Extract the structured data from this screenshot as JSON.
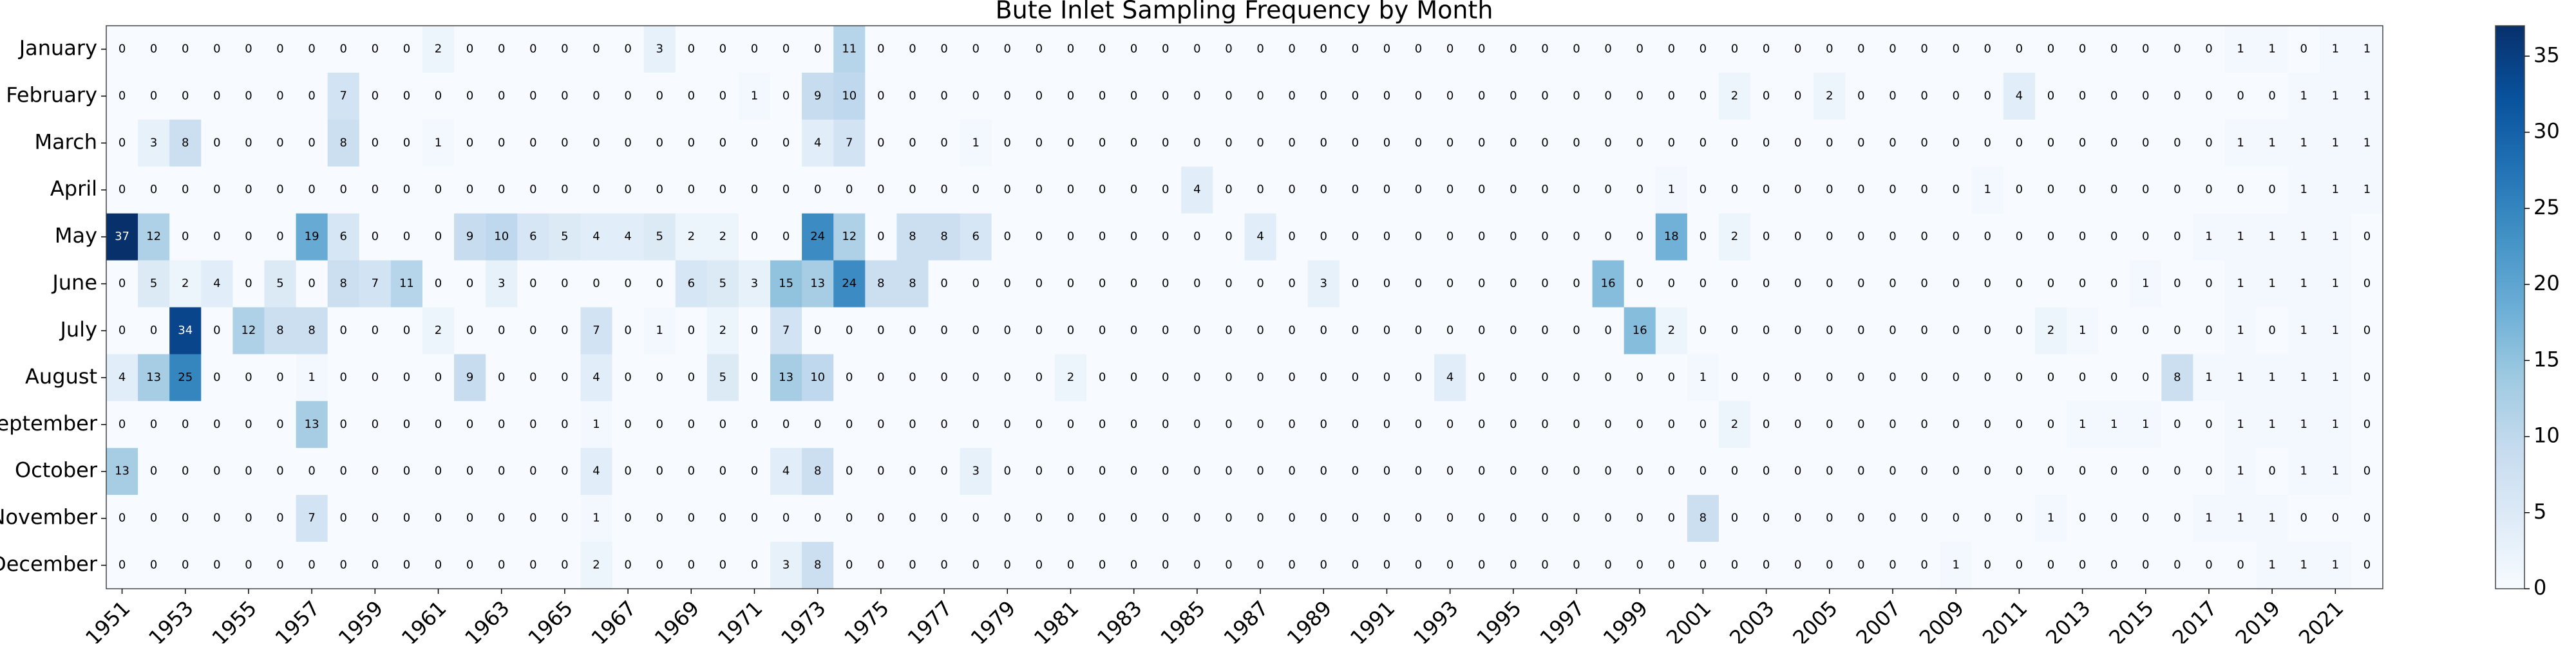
{
  "chart_data": {
    "type": "heatmap",
    "title": "Bute Inlet Sampling Frequency by Month",
    "x": [
      1951,
      null,
      1953,
      null,
      1955,
      null,
      1957,
      null,
      1959,
      null,
      1961,
      null,
      1963,
      null,
      1965,
      null,
      1967,
      null,
      1969,
      null,
      1971,
      null,
      1973,
      null,
      1975,
      null,
      1977,
      null,
      1979,
      null,
      1981,
      null,
      1983,
      null,
      1985,
      null,
      1987,
      null,
      1989,
      null,
      1991,
      null,
      1993,
      null,
      1995,
      null,
      1997,
      null,
      1999,
      null,
      2001,
      null,
      2003,
      null,
      2005,
      null,
      2007,
      null,
      2009,
      null,
      2011,
      null,
      2013,
      null,
      2015,
      null,
      2017,
      null,
      2019,
      null,
      2021,
      null
    ],
    "y": [
      "January",
      "February",
      "March",
      "April",
      "May",
      "June",
      "July",
      "August",
      "September",
      "October",
      "November",
      "December"
    ],
    "values": [
      [
        0,
        0,
        0,
        0,
        0,
        0,
        0,
        0,
        0,
        0,
        2,
        0,
        0,
        0,
        0,
        0,
        0,
        3,
        0,
        0,
        0,
        0,
        0,
        11,
        0,
        0,
        0,
        0,
        0,
        0,
        0,
        0,
        0,
        0,
        0,
        0,
        0,
        0,
        0,
        0,
        0,
        0,
        0,
        0,
        0,
        0,
        0,
        0,
        0,
        0,
        0,
        0,
        0,
        0,
        0,
        0,
        0,
        0,
        0,
        0,
        0,
        0,
        0,
        0,
        0,
        0,
        0,
        1,
        1,
        0,
        1,
        1
      ],
      [
        0,
        0,
        0,
        0,
        0,
        0,
        0,
        7,
        0,
        0,
        0,
        0,
        0,
        0,
        0,
        0,
        0,
        0,
        0,
        0,
        1,
        0,
        9,
        10,
        0,
        0,
        0,
        0,
        0,
        0,
        0,
        0,
        0,
        0,
        0,
        0,
        0,
        0,
        0,
        0,
        0,
        0,
        0,
        0,
        0,
        0,
        0,
        0,
        0,
        0,
        0,
        2,
        0,
        0,
        2,
        0,
        0,
        0,
        0,
        0,
        4,
        0,
        0,
        0,
        0,
        0,
        0,
        0,
        0,
        1,
        1,
        1
      ],
      [
        0,
        3,
        8,
        0,
        0,
        0,
        0,
        8,
        0,
        0,
        1,
        0,
        0,
        0,
        0,
        0,
        0,
        0,
        0,
        0,
        0,
        0,
        4,
        7,
        0,
        0,
        0,
        1,
        0,
        0,
        0,
        0,
        0,
        0,
        0,
        0,
        0,
        0,
        0,
        0,
        0,
        0,
        0,
        0,
        0,
        0,
        0,
        0,
        0,
        0,
        0,
        0,
        0,
        0,
        0,
        0,
        0,
        0,
        0,
        0,
        0,
        0,
        0,
        0,
        0,
        0,
        0,
        1,
        1,
        1,
        1,
        1
      ],
      [
        0,
        0,
        0,
        0,
        0,
        0,
        0,
        0,
        0,
        0,
        0,
        0,
        0,
        0,
        0,
        0,
        0,
        0,
        0,
        0,
        0,
        0,
        0,
        0,
        0,
        0,
        0,
        0,
        0,
        0,
        0,
        0,
        0,
        0,
        4,
        0,
        0,
        0,
        0,
        0,
        0,
        0,
        0,
        0,
        0,
        0,
        0,
        0,
        0,
        1,
        0,
        0,
        0,
        0,
        0,
        0,
        0,
        0,
        0,
        1,
        0,
        0,
        0,
        0,
        0,
        0,
        0,
        0,
        0,
        1,
        1,
        1
      ],
      [
        37,
        12,
        0,
        0,
        0,
        0,
        19,
        6,
        0,
        0,
        0,
        9,
        10,
        6,
        5,
        4,
        4,
        5,
        2,
        2,
        0,
        0,
        24,
        12,
        0,
        8,
        8,
        6,
        0,
        0,
        0,
        0,
        0,
        0,
        0,
        0,
        4,
        0,
        0,
        0,
        0,
        0,
        0,
        0,
        0,
        0,
        0,
        0,
        0,
        18,
        0,
        2,
        0,
        0,
        0,
        0,
        0,
        0,
        0,
        0,
        0,
        0,
        0,
        0,
        0,
        0,
        1,
        1,
        1,
        1,
        1,
        0
      ],
      [
        0,
        5,
        2,
        4,
        0,
        5,
        0,
        8,
        7,
        11,
        0,
        0,
        3,
        0,
        0,
        0,
        0,
        0,
        6,
        5,
        3,
        15,
        13,
        24,
        8,
        8,
        0,
        0,
        0,
        0,
        0,
        0,
        0,
        0,
        0,
        0,
        0,
        0,
        3,
        0,
        0,
        0,
        0,
        0,
        0,
        0,
        0,
        16,
        0,
        0,
        0,
        0,
        0,
        0,
        0,
        0,
        0,
        0,
        0,
        0,
        0,
        0,
        0,
        0,
        1,
        0,
        0,
        1,
        1,
        1,
        1,
        0
      ],
      [
        0,
        0,
        34,
        0,
        12,
        8,
        8,
        0,
        0,
        0,
        2,
        0,
        0,
        0,
        0,
        7,
        0,
        1,
        0,
        2,
        0,
        7,
        0,
        0,
        0,
        0,
        0,
        0,
        0,
        0,
        0,
        0,
        0,
        0,
        0,
        0,
        0,
        0,
        0,
        0,
        0,
        0,
        0,
        0,
        0,
        0,
        0,
        0,
        16,
        2,
        0,
        0,
        0,
        0,
        0,
        0,
        0,
        0,
        0,
        0,
        0,
        2,
        1,
        0,
        0,
        0,
        0,
        1,
        0,
        1,
        1,
        0
      ],
      [
        4,
        13,
        25,
        0,
        0,
        0,
        1,
        0,
        0,
        0,
        0,
        9,
        0,
        0,
        0,
        4,
        0,
        0,
        0,
        5,
        0,
        13,
        10,
        0,
        0,
        0,
        0,
        0,
        0,
        0,
        2,
        0,
        0,
        0,
        0,
        0,
        0,
        0,
        0,
        0,
        0,
        0,
        4,
        0,
        0,
        0,
        0,
        0,
        0,
        0,
        1,
        0,
        0,
        0,
        0,
        0,
        0,
        0,
        0,
        0,
        0,
        0,
        0,
        0,
        0,
        8,
        1,
        1,
        1,
        1,
        1,
        0
      ],
      [
        0,
        0,
        0,
        0,
        0,
        0,
        13,
        0,
        0,
        0,
        0,
        0,
        0,
        0,
        0,
        1,
        0,
        0,
        0,
        0,
        0,
        0,
        0,
        0,
        0,
        0,
        0,
        0,
        0,
        0,
        0,
        0,
        0,
        0,
        0,
        0,
        0,
        0,
        0,
        0,
        0,
        0,
        0,
        0,
        0,
        0,
        0,
        0,
        0,
        0,
        0,
        2,
        0,
        0,
        0,
        0,
        0,
        0,
        0,
        0,
        0,
        0,
        1,
        1,
        1,
        0,
        0,
        1,
        1,
        1,
        1,
        0
      ],
      [
        13,
        0,
        0,
        0,
        0,
        0,
        0,
        0,
        0,
        0,
        0,
        0,
        0,
        0,
        0,
        4,
        0,
        0,
        0,
        0,
        0,
        4,
        8,
        0,
        0,
        0,
        0,
        3,
        0,
        0,
        0,
        0,
        0,
        0,
        0,
        0,
        0,
        0,
        0,
        0,
        0,
        0,
        0,
        0,
        0,
        0,
        0,
        0,
        0,
        0,
        0,
        0,
        0,
        0,
        0,
        0,
        0,
        0,
        0,
        0,
        0,
        0,
        0,
        0,
        0,
        0,
        0,
        1,
        0,
        1,
        1,
        0
      ],
      [
        0,
        0,
        0,
        0,
        0,
        0,
        7,
        0,
        0,
        0,
        0,
        0,
        0,
        0,
        0,
        1,
        0,
        0,
        0,
        0,
        0,
        0,
        0,
        0,
        0,
        0,
        0,
        0,
        0,
        0,
        0,
        0,
        0,
        0,
        0,
        0,
        0,
        0,
        0,
        0,
        0,
        0,
        0,
        0,
        0,
        0,
        0,
        0,
        0,
        0,
        8,
        0,
        0,
        0,
        0,
        0,
        0,
        0,
        0,
        0,
        0,
        1,
        0,
        0,
        0,
        0,
        1,
        1,
        1,
        0,
        0,
        0
      ],
      [
        0,
        0,
        0,
        0,
        0,
        0,
        0,
        0,
        0,
        0,
        0,
        0,
        0,
        0,
        0,
        2,
        0,
        0,
        0,
        0,
        0,
        3,
        8,
        0,
        0,
        0,
        0,
        0,
        0,
        0,
        0,
        0,
        0,
        0,
        0,
        0,
        0,
        0,
        0,
        0,
        0,
        0,
        0,
        0,
        0,
        0,
        0,
        0,
        0,
        0,
        0,
        0,
        0,
        0,
        0,
        0,
        0,
        0,
        1,
        0,
        0,
        0,
        0,
        0,
        0,
        0,
        0,
        0,
        1,
        1,
        1,
        0
      ]
    ],
    "colormap": [
      "#f7fbff",
      "#deebf7",
      "#c6dbef",
      "#9ecae1",
      "#6baed6",
      "#4292c6",
      "#2171b5",
      "#08519c",
      "#08306b"
    ],
    "clim": [
      0,
      37
    ],
    "cticks": [
      0,
      5,
      10,
      15,
      20,
      25,
      30,
      35
    ]
  }
}
